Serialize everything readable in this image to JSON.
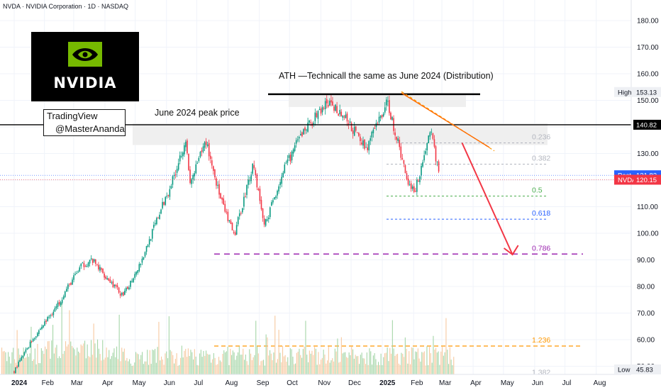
{
  "header": {
    "title": "NVDA · NVIDIA Corporation · 1D · NASDAQ"
  },
  "logo": {
    "wordmark": "NVIDIA",
    "color": "#76b900"
  },
  "watermark": {
    "line1": "TradingView",
    "line2": "@MasterAnanda"
  },
  "annotations": {
    "june_peak": "June 2024 peak price",
    "ath": "ATH —Technicall the same as June 2024 (Distribution)"
  },
  "price_labels": {
    "high_label": "High",
    "high_value": "153.13",
    "post_label": "Post",
    "post_value": "121.82",
    "symbol_label": "NVDA",
    "symbol_value": "120.15",
    "level_value": "140.82",
    "low_label": "Low",
    "low_value": "45.83"
  },
  "chart_data": {
    "type": "candlestick",
    "title": "NVDA · NVIDIA Corporation · 1D · NASDAQ",
    "x_ticks": [
      "2024",
      "Feb",
      "Mar",
      "Apr",
      "May",
      "Jun",
      "Jul",
      "Aug",
      "Sep",
      "Oct",
      "Nov",
      "Dec",
      "2025",
      "Feb",
      "Mar",
      "Apr",
      "May",
      "Jun",
      "Jul",
      "Aug"
    ],
    "y_ticks": [
      180,
      170,
      160,
      150,
      140,
      130,
      120,
      110,
      100,
      90,
      80,
      70,
      60,
      50
    ],
    "y_range": [
      45,
      185
    ],
    "price_path": [
      {
        "date": "2024-01-02",
        "close": 48.2
      },
      {
        "date": "2024-01-19",
        "close": 59.5
      },
      {
        "date": "2024-02-14",
        "close": 73.0
      },
      {
        "date": "2024-02-23",
        "close": 79.0
      },
      {
        "date": "2024-03-08",
        "close": 87.5
      },
      {
        "date": "2024-03-19",
        "close": 90.0
      },
      {
        "date": "2024-04-19",
        "close": 76.2
      },
      {
        "date": "2024-05-08",
        "close": 90.5
      },
      {
        "date": "2024-05-24",
        "close": 106.5
      },
      {
        "date": "2024-06-07",
        "close": 120.0
      },
      {
        "date": "2024-06-20",
        "close": 135.6
      },
      {
        "date": "2024-06-24",
        "close": 118.1
      },
      {
        "date": "2024-07-10",
        "close": 134.9
      },
      {
        "date": "2024-07-25",
        "close": 112.3
      },
      {
        "date": "2024-08-07",
        "close": 98.9
      },
      {
        "date": "2024-08-26",
        "close": 126.5
      },
      {
        "date": "2024-09-06",
        "close": 102.8
      },
      {
        "date": "2024-09-25",
        "close": 123.5
      },
      {
        "date": "2024-10-14",
        "close": 138.1
      },
      {
        "date": "2024-11-07",
        "close": 148.9
      },
      {
        "date": "2024-11-20",
        "close": 145.9
      },
      {
        "date": "2024-12-16",
        "close": 132.0
      },
      {
        "date": "2025-01-06",
        "close": 149.4
      },
      {
        "date": "2025-01-27",
        "close": 118.4
      },
      {
        "date": "2025-02-03",
        "close": 116.7
      },
      {
        "date": "2025-02-18",
        "close": 139.4
      },
      {
        "date": "2025-02-27",
        "close": 120.15
      }
    ],
    "levels": {
      "resistance": 140.82,
      "ath": 153.13,
      "post": 121.82,
      "last": 120.15,
      "period_low": 45.83,
      "fib_0_786_target": 92.2
    },
    "fib_levels": [
      {
        "label": "0.236",
        "value": 134.0,
        "color": "#b2b5be"
      },
      {
        "label": "0.382",
        "value": 126.0,
        "color": "#b2b5be"
      },
      {
        "label": "0.5",
        "value": 114.0,
        "color": "#4caf50"
      },
      {
        "label": "0.618",
        "value": 105.3,
        "color": "#2962ff"
      },
      {
        "label": "0.786",
        "value": 92.2,
        "color": "#9c27b0"
      },
      {
        "label": "1.236",
        "value": 57.6,
        "color": "#ff9800"
      },
      {
        "label": "1.382",
        "value": 45.5,
        "color": "#b2b5be"
      }
    ],
    "projection": {
      "from_date": "2025-03-21",
      "from_price": 134.0,
      "to_date": "2025-05-10",
      "to_price": 92.0,
      "color": "#f23645"
    },
    "colors": {
      "up": "#089981",
      "down": "#f23645",
      "up_volume": "#a5d6a7",
      "down_volume": "#f7c9a0",
      "grid": "#f0f3fa"
    }
  }
}
